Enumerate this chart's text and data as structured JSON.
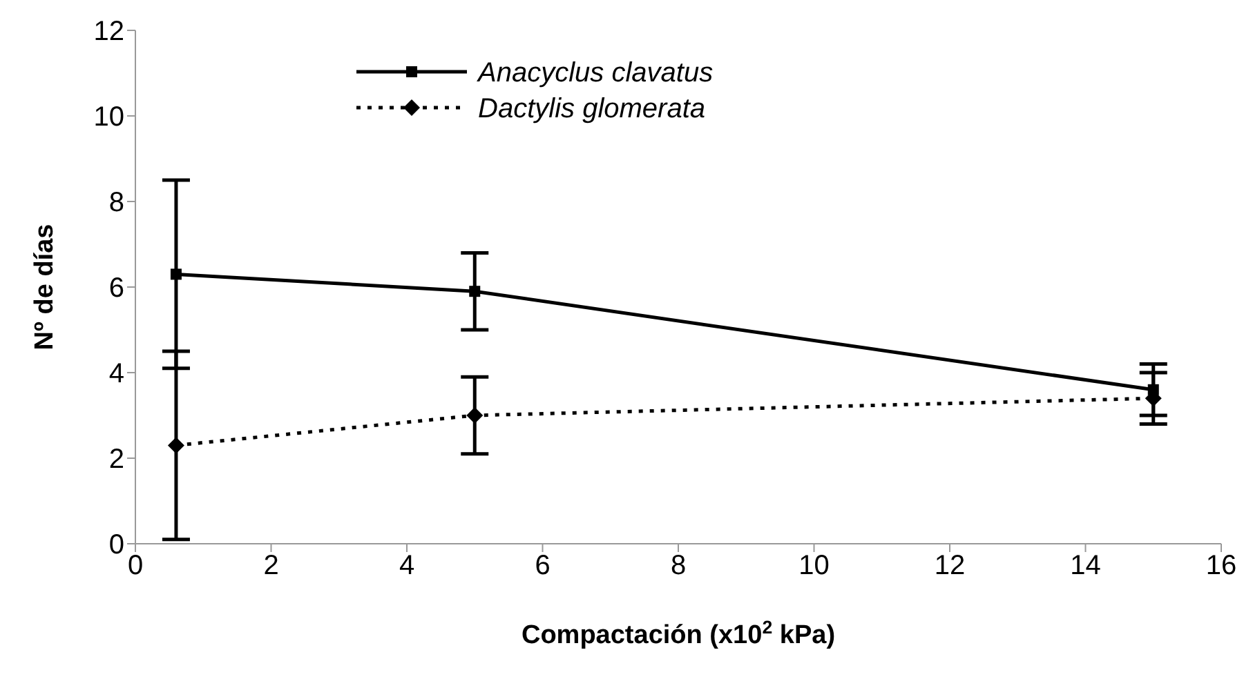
{
  "chart_data": {
    "type": "line",
    "xlabel": "Compactación (x10$^{2}$ kPa)",
    "ylabel": "Nº de días",
    "x": [
      0.6,
      5,
      15
    ],
    "series": [
      {
        "name": "Anacyclus clavatus",
        "color": "#000000",
        "values": [
          6.3,
          5.9,
          3.6
        ],
        "errors": [
          2.2,
          0.9,
          0.6
        ],
        "marker": "square",
        "line_style": "solid"
      },
      {
        "name": "Dactylis glomerata",
        "color": "#000000",
        "values": [
          2.3,
          3.0,
          3.4
        ],
        "errors": [
          2.2,
          0.9,
          0.6
        ],
        "marker": "diamond",
        "line_style": "dotted"
      }
    ],
    "xlim": [
      0,
      16
    ],
    "xticks": [
      0,
      2,
      4,
      6,
      8,
      10,
      12,
      14,
      16
    ],
    "ylim": [
      0,
      12
    ],
    "yticks": [
      0,
      2,
      4,
      6,
      8,
      10,
      12
    ],
    "grid": false,
    "legend": "top"
  }
}
